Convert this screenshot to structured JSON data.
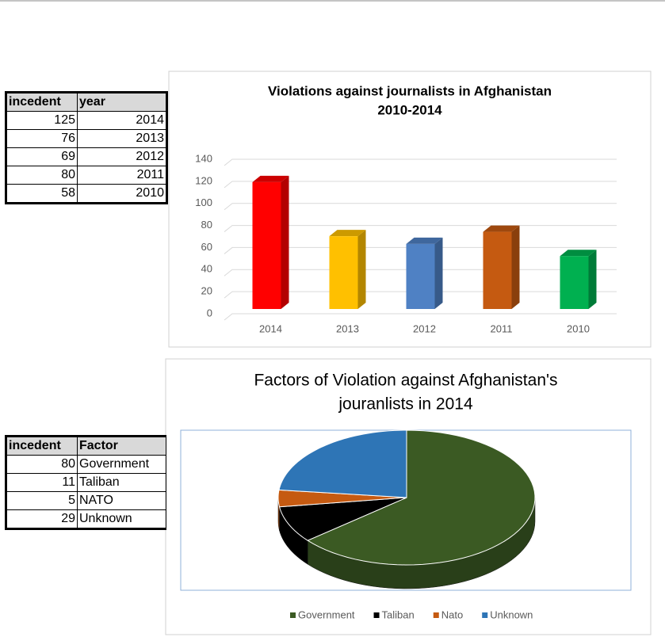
{
  "tables": [
    {
      "header": [
        "incedent",
        "year"
      ],
      "rows": [
        [
          125,
          2014
        ],
        [
          76,
          2013
        ],
        [
          69,
          2012
        ],
        [
          80,
          2011
        ],
        [
          58,
          2010
        ]
      ]
    },
    {
      "header": [
        "incedent",
        "Factor"
      ],
      "rows": [
        [
          80,
          "Government"
        ],
        [
          11,
          "Taliban"
        ],
        [
          5,
          "NATO"
        ],
        [
          29,
          "Unknown"
        ]
      ]
    }
  ],
  "chart_data": [
    {
      "type": "bar",
      "title": [
        "Violations against journalists in Afghanistan",
        "2010-2014"
      ],
      "categories": [
        "2014",
        "2013",
        "2012",
        "2011",
        "2010"
      ],
      "values": [
        125,
        76,
        69,
        80,
        58
      ],
      "colors": [
        "#ff0000",
        "#ffc000",
        "#4f81c4",
        "#c55a11",
        "#00b050"
      ],
      "ylim": [
        0,
        140
      ],
      "yticks": [
        0,
        20,
        40,
        60,
        80,
        100,
        120,
        140
      ],
      "grid": true
    },
    {
      "type": "pie",
      "title": [
        "Factors of Violation against Afghanistan's",
        "jouranlists in 2014"
      ],
      "categories": [
        "Government",
        "Taliban",
        "Nato",
        "Unknown"
      ],
      "values": [
        80,
        11,
        5,
        29
      ],
      "colors": [
        "#3b5a23",
        "#000000",
        "#c55a11",
        "#2e75b6"
      ],
      "legend": "bottom"
    }
  ]
}
